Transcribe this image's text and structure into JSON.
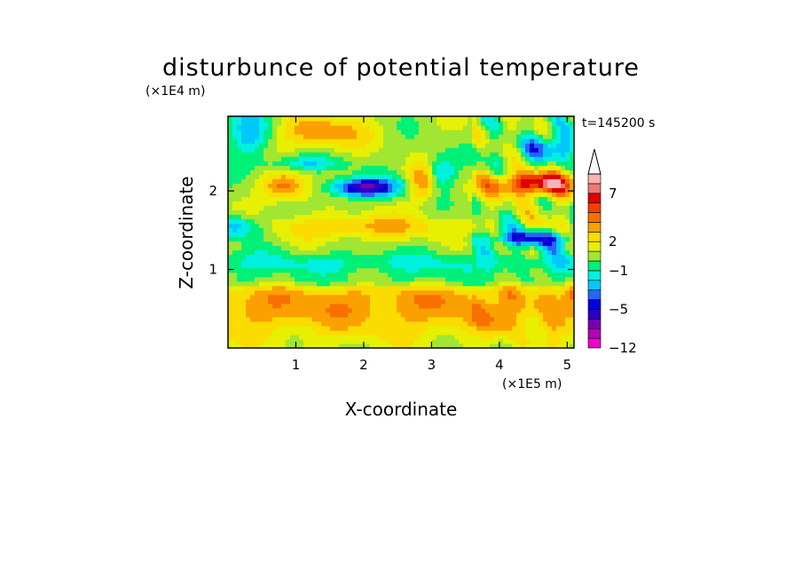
{
  "chart_data": {
    "type": "heatmap",
    "title": "disturbunce of potential temperature",
    "xlabel": "X-coordinate",
    "ylabel": "Z-coordinate",
    "x_unit": "(×1E5 m)",
    "y_unit": "(×1E4 m)",
    "time_label": "t=145200 s",
    "xlim": [
      0,
      5.1
    ],
    "ylim": [
      0,
      2.95
    ],
    "x_ticks": [
      1,
      2,
      3,
      4,
      5
    ],
    "y_ticks": [
      1,
      2
    ],
    "colorbar": {
      "labels": [
        "7",
        "2",
        "−1",
        "−5",
        "−12"
      ],
      "label_values": [
        7,
        2,
        -1,
        -5,
        -12
      ],
      "levels": [
        -12,
        -10,
        -8,
        -6,
        -5,
        -4,
        -3,
        -2,
        -1,
        0,
        1,
        2,
        3,
        4,
        5,
        6,
        7,
        8,
        9
      ],
      "colors": [
        "#ee00c8",
        "#b400b4",
        "#7800b4",
        "#2800c8",
        "#0000dc",
        "#2864fa",
        "#00c8fa",
        "#00f0e0",
        "#00f078",
        "#a0e632",
        "#e6f000",
        "#fadc00",
        "#faa000",
        "#f87000",
        "#f04000",
        "#e00000",
        "#f07878",
        "#f8b4b4",
        "#fafafa"
      ]
    },
    "grid": false
  }
}
